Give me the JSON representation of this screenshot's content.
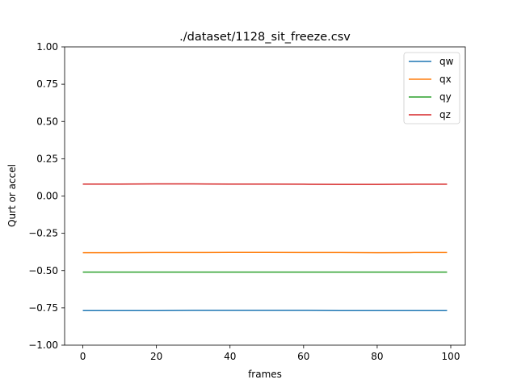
{
  "chart_data": {
    "type": "line",
    "title": "./dataset/1128_sit_freeze.csv",
    "xlabel": "frames",
    "ylabel": "Qurt or accel",
    "xlim": [
      -4.95,
      103.95
    ],
    "ylim": [
      -1.0,
      1.0
    ],
    "xticks": [
      0,
      20,
      40,
      60,
      80,
      100
    ],
    "yticks": [
      -1.0,
      -0.75,
      -0.5,
      -0.25,
      0.0,
      0.25,
      0.5,
      0.75,
      1.0
    ],
    "ytick_labels": [
      "−1.00",
      "−0.75",
      "−0.50",
      "−0.25",
      "0.00",
      "0.25",
      "0.50",
      "0.75",
      "1.00"
    ],
    "grid": false,
    "legend_position": "top-right",
    "x": [
      0,
      10,
      20,
      30,
      40,
      50,
      60,
      70,
      80,
      90,
      99
    ],
    "series": [
      {
        "name": "qw",
        "color": "#1f77b4",
        "values": [
          -0.768,
          -0.768,
          -0.768,
          -0.767,
          -0.767,
          -0.767,
          -0.767,
          -0.768,
          -0.768,
          -0.768,
          -0.768
        ]
      },
      {
        "name": "qx",
        "color": "#ff7f0e",
        "values": [
          -0.38,
          -0.38,
          -0.379,
          -0.379,
          -0.378,
          -0.378,
          -0.379,
          -0.379,
          -0.38,
          -0.379,
          -0.379
        ]
      },
      {
        "name": "qy",
        "color": "#2ca02c",
        "values": [
          -0.51,
          -0.51,
          -0.51,
          -0.51,
          -0.51,
          -0.51,
          -0.51,
          -0.51,
          -0.51,
          -0.51,
          -0.51
        ]
      },
      {
        "name": "qz",
        "color": "#d62728",
        "values": [
          0.08,
          0.08,
          0.081,
          0.081,
          0.08,
          0.08,
          0.079,
          0.078,
          0.078,
          0.079,
          0.079
        ]
      }
    ]
  }
}
